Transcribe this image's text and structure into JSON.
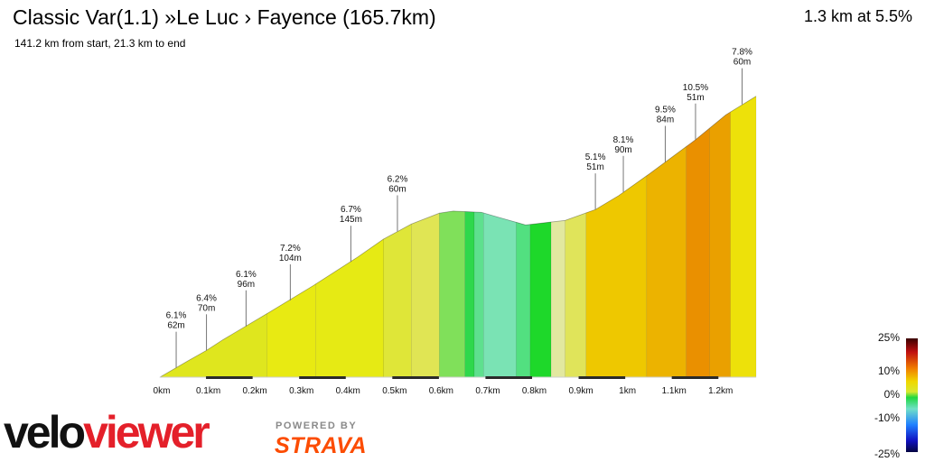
{
  "header": {
    "title": "Classic Var(1.1)  »Le Luc › Fayence (165.7km)",
    "subtitle": "141.2 km from start, 21.3 km to end",
    "summary": "1.3 km at 5.5%"
  },
  "branding": {
    "logo_text": "veloviewer",
    "powered_by": "POWERED BY",
    "strava": "STRAVA"
  },
  "gradient_scale": {
    "labels": [
      "25%",
      "10%",
      "0%",
      "-10%",
      "-25%"
    ]
  },
  "chart_data": {
    "type": "area",
    "x_unit": "km",
    "x_ticks": [
      "0km",
      "0.1km",
      "0.2km",
      "0.3km",
      "0.4km",
      "0.5km",
      "0.6km",
      "0.7km",
      "0.8km",
      "0.9km",
      "1km",
      "1.1km",
      "1.2km"
    ],
    "xlim": [
      0,
      1.28
    ],
    "ylim": [
      0,
      70
    ],
    "profile": [
      {
        "x": 0.0,
        "y": 0.0
      },
      {
        "x": 0.06,
        "y": 4.0
      },
      {
        "x": 0.1,
        "y": 6.6
      },
      {
        "x": 0.135,
        "y": 9.2
      },
      {
        "x": 0.235,
        "y": 16.0
      },
      {
        "x": 0.33,
        "y": 22.6
      },
      {
        "x": 0.425,
        "y": 29.6
      },
      {
        "x": 0.48,
        "y": 34.0
      },
      {
        "x": 0.54,
        "y": 37.7
      },
      {
        "x": 0.6,
        "y": 40.4
      },
      {
        "x": 0.63,
        "y": 40.9
      },
      {
        "x": 0.69,
        "y": 40.6
      },
      {
        "x": 0.73,
        "y": 39.3
      },
      {
        "x": 0.785,
        "y": 37.5
      },
      {
        "x": 0.87,
        "y": 38.6
      },
      {
        "x": 0.935,
        "y": 41.3
      },
      {
        "x": 0.985,
        "y": 44.7
      },
      {
        "x": 1.05,
        "y": 50.0
      },
      {
        "x": 1.15,
        "y": 58.5
      },
      {
        "x": 1.215,
        "y": 64.6
      },
      {
        "x": 1.28,
        "y": 69.2
      }
    ],
    "segments": [
      {
        "x0": 0.0,
        "x1": 0.23,
        "color": "#dfe61e"
      },
      {
        "x0": 0.23,
        "x1": 0.335,
        "color": "#e8ea12"
      },
      {
        "x0": 0.335,
        "x1": 0.48,
        "color": "#e6ea14"
      },
      {
        "x0": 0.48,
        "x1": 0.54,
        "color": "#dfe638"
      },
      {
        "x0": 0.54,
        "x1": 0.6,
        "color": "#e0e554"
      },
      {
        "x0": 0.6,
        "x1": 0.655,
        "color": "#80e05a"
      },
      {
        "x0": 0.655,
        "x1": 0.675,
        "color": "#2ed84c"
      },
      {
        "x0": 0.675,
        "x1": 0.695,
        "color": "#5ee08e"
      },
      {
        "x0": 0.695,
        "x1": 0.765,
        "color": "#7ae3b4"
      },
      {
        "x0": 0.765,
        "x1": 0.795,
        "color": "#52e080"
      },
      {
        "x0": 0.795,
        "x1": 0.84,
        "color": "#1ed82a"
      },
      {
        "x0": 0.84,
        "x1": 0.87,
        "color": "#e2e8a0"
      },
      {
        "x0": 0.87,
        "x1": 0.915,
        "color": "#e0e45a"
      },
      {
        "x0": 0.915,
        "x1": 1.045,
        "color": "#eec800"
      },
      {
        "x0": 1.045,
        "x1": 1.13,
        "color": "#ecb300"
      },
      {
        "x0": 1.13,
        "x1": 1.18,
        "color": "#ea9000"
      },
      {
        "x0": 1.18,
        "x1": 1.225,
        "color": "#eaa000"
      },
      {
        "x0": 1.225,
        "x1": 1.28,
        "color": "#ede10a"
      }
    ],
    "annotations": [
      {
        "x": 0.035,
        "y": 2.3,
        "grade": "6.1%",
        "dist": "62m"
      },
      {
        "x": 0.1,
        "y": 6.6,
        "grade": "6.4%",
        "dist": "70m"
      },
      {
        "x": 0.185,
        "y": 12.5,
        "grade": "6.1%",
        "dist": "96m"
      },
      {
        "x": 0.28,
        "y": 18.9,
        "grade": "7.2%",
        "dist": "104m"
      },
      {
        "x": 0.41,
        "y": 28.4,
        "grade": "6.7%",
        "dist": "145m"
      },
      {
        "x": 0.51,
        "y": 35.9,
        "grade": "6.2%",
        "dist": "60m"
      },
      {
        "x": 0.935,
        "y": 41.3,
        "grade": "5.1%",
        "dist": "51m"
      },
      {
        "x": 0.995,
        "y": 45.6,
        "grade": "8.1%",
        "dist": "90m"
      },
      {
        "x": 1.085,
        "y": 53.0,
        "grade": "9.5%",
        "dist": "84m"
      },
      {
        "x": 1.15,
        "y": 58.5,
        "grade": "10.5%",
        "dist": "51m"
      },
      {
        "x": 1.25,
        "y": 67.2,
        "grade": "7.8%",
        "dist": "60m"
      }
    ]
  }
}
